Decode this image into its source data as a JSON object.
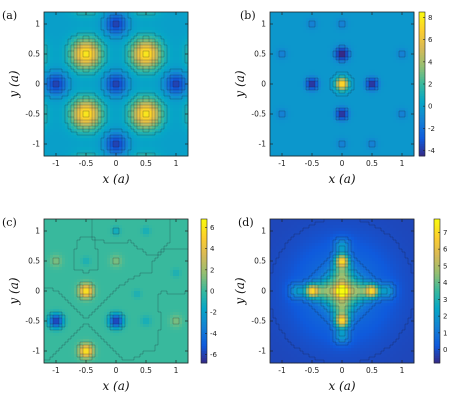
{
  "chart_data": [
    {
      "type": "heatmap",
      "panel_label": "(a)",
      "xlabel": "x (a)",
      "ylabel": "y (a)",
      "xlim": [
        -1.2,
        1.2
      ],
      "ylim": [
        -1.2,
        1.2
      ],
      "xticks": [
        "-1",
        "-0.5",
        "0",
        "0.5",
        "1"
      ],
      "yticks": [
        "1",
        "0.5",
        "0",
        "-0.5",
        "-1"
      ],
      "colorbar": null,
      "field": {
        "kind": "lattice",
        "base": 0.35,
        "peaks": [
          [
            -0.5,
            0.5,
            0.95
          ],
          [
            0.5,
            0.5,
            0.95
          ],
          [
            -0.5,
            -0.5,
            0.95
          ],
          [
            0.5,
            -0.5,
            0.95
          ]
        ],
        "dips": [
          [
            0,
            0,
            0.3
          ],
          [
            0,
            1,
            0.3
          ],
          [
            1,
            0,
            0.3
          ],
          [
            -1,
            0,
            0.3
          ],
          [
            0,
            -1,
            0.3
          ]
        ],
        "width": 0.17
      }
    },
    {
      "type": "heatmap",
      "panel_label": "(b)",
      "xlabel": "x (a)",
      "ylabel": "y (a)",
      "xlim": [
        -1.2,
        1.2
      ],
      "ylim": [
        -1.2,
        1.2
      ],
      "xticks": [
        "-1",
        "-0.5",
        "0",
        "0.5",
        "1"
      ],
      "yticks": [
        "1",
        "0.5",
        "0",
        "-0.5",
        "-1"
      ],
      "colorbar": {
        "min": -4.5,
        "max": 8.5,
        "ticks": [
          "8",
          "6",
          "4",
          "2",
          "0",
          "-2",
          "-4"
        ],
        "tick_values": [
          8,
          6,
          4,
          2,
          0,
          -2,
          -4
        ]
      },
      "field": {
        "kind": "blobs",
        "base": -0.3,
        "blobs": [
          [
            0,
            0,
            8.3,
            0.07
          ],
          [
            -0.5,
            0,
            -4.2,
            0.07
          ],
          [
            0.5,
            0,
            -4.2,
            0.07
          ],
          [
            0,
            0.5,
            -4.2,
            0.07
          ],
          [
            0,
            -0.5,
            -4.2,
            0.07
          ],
          [
            0,
            0.5,
            -1.2,
            0.09
          ],
          [
            0,
            -1,
            -1.2,
            0.06
          ],
          [
            0,
            1,
            -1.2,
            0.06
          ],
          [
            -1,
            0.5,
            -1.2,
            0.06
          ],
          [
            1,
            0.5,
            -1.2,
            0.06
          ],
          [
            -1,
            -0.5,
            -1.2,
            0.06
          ],
          [
            1,
            -0.5,
            -1.2,
            0.06
          ],
          [
            -0.5,
            1,
            -1.2,
            0.06
          ],
          [
            0.5,
            -1,
            -1.2,
            0.06
          ]
        ]
      }
    },
    {
      "type": "heatmap",
      "panel_label": "(c)",
      "xlabel": "x (a)",
      "ylabel": "y (a)",
      "xlim": [
        -1.2,
        1.2
      ],
      "ylim": [
        -1.2,
        1.2
      ],
      "xticks": [
        "-1",
        "-0.5",
        "0",
        "0.5",
        "1"
      ],
      "yticks": [
        "1",
        "0.5",
        "0",
        "-0.5",
        "-1"
      ],
      "colorbar": {
        "min": -6.8,
        "max": 6.8,
        "ticks": [
          "6",
          "4",
          "2",
          "0",
          "-2",
          "-4",
          "-6"
        ],
        "tick_values": [
          6,
          4,
          2,
          0,
          -2,
          -4,
          -6
        ]
      },
      "field": {
        "kind": "blobs",
        "base": 0.0,
        "blobs": [
          [
            -0.5,
            0,
            6.2,
            0.08
          ],
          [
            -0.5,
            -1,
            6.2,
            0.08
          ],
          [
            -1,
            -0.5,
            -6.3,
            0.08
          ],
          [
            0,
            -0.5,
            -6.3,
            0.08
          ],
          [
            -1,
            0.5,
            1.3,
            0.07
          ],
          [
            0,
            0.5,
            1.3,
            0.07
          ],
          [
            1,
            -0.5,
            1.3,
            0.07
          ],
          [
            0.5,
            -0.5,
            -1.2,
            0.06
          ],
          [
            0.5,
            1,
            -1.2,
            0.05
          ],
          [
            0,
            1,
            -1.5,
            0.05
          ],
          [
            -0.5,
            0.5,
            -1.0,
            0.05
          ],
          [
            1,
            0.3,
            -1.0,
            0.05
          ],
          [
            0.35,
            -0.05,
            -1.0,
            0.05
          ]
        ]
      }
    },
    {
      "type": "heatmap",
      "panel_label": "(d)",
      "xlabel": "x (a)",
      "ylabel": "y (a)",
      "xlim": [
        -1.2,
        1.2
      ],
      "ylim": [
        -1.2,
        1.2
      ],
      "xticks": [
        "-1",
        "-0.5",
        "0",
        "0.5",
        "1"
      ],
      "yticks": [
        "1",
        "0.5",
        "0",
        "-0.5",
        "-1"
      ],
      "colorbar": {
        "min": -0.8,
        "max": 7.8,
        "ticks": [
          "7",
          "6",
          "5",
          "4",
          "3",
          "2",
          "1",
          "0"
        ],
        "tick_values": [
          7,
          6,
          5,
          4,
          3,
          2,
          1,
          0
        ]
      },
      "field": {
        "kind": "blobs",
        "base": -0.2,
        "blobs": [
          [
            0,
            0,
            6.8,
            0.08
          ],
          [
            0,
            0.5,
            6.0,
            0.08
          ],
          [
            0,
            -0.5,
            6.0,
            0.08
          ],
          [
            -0.5,
            0,
            6.0,
            0.08
          ],
          [
            0.5,
            0,
            6.0,
            0.08
          ],
          [
            0,
            0.25,
            3.5,
            0.13
          ],
          [
            0,
            -0.25,
            3.5,
            0.13
          ],
          [
            -0.25,
            0,
            3.5,
            0.13
          ],
          [
            0.25,
            0,
            3.5,
            0.13
          ],
          [
            0,
            0.75,
            1.8,
            0.09
          ],
          [
            0,
            -0.75,
            1.8,
            0.09
          ],
          [
            -0.75,
            0,
            1.8,
            0.09
          ],
          [
            0.75,
            0,
            1.8,
            0.09
          ],
          [
            0,
            0,
            1.3,
            0.55
          ]
        ]
      }
    }
  ]
}
